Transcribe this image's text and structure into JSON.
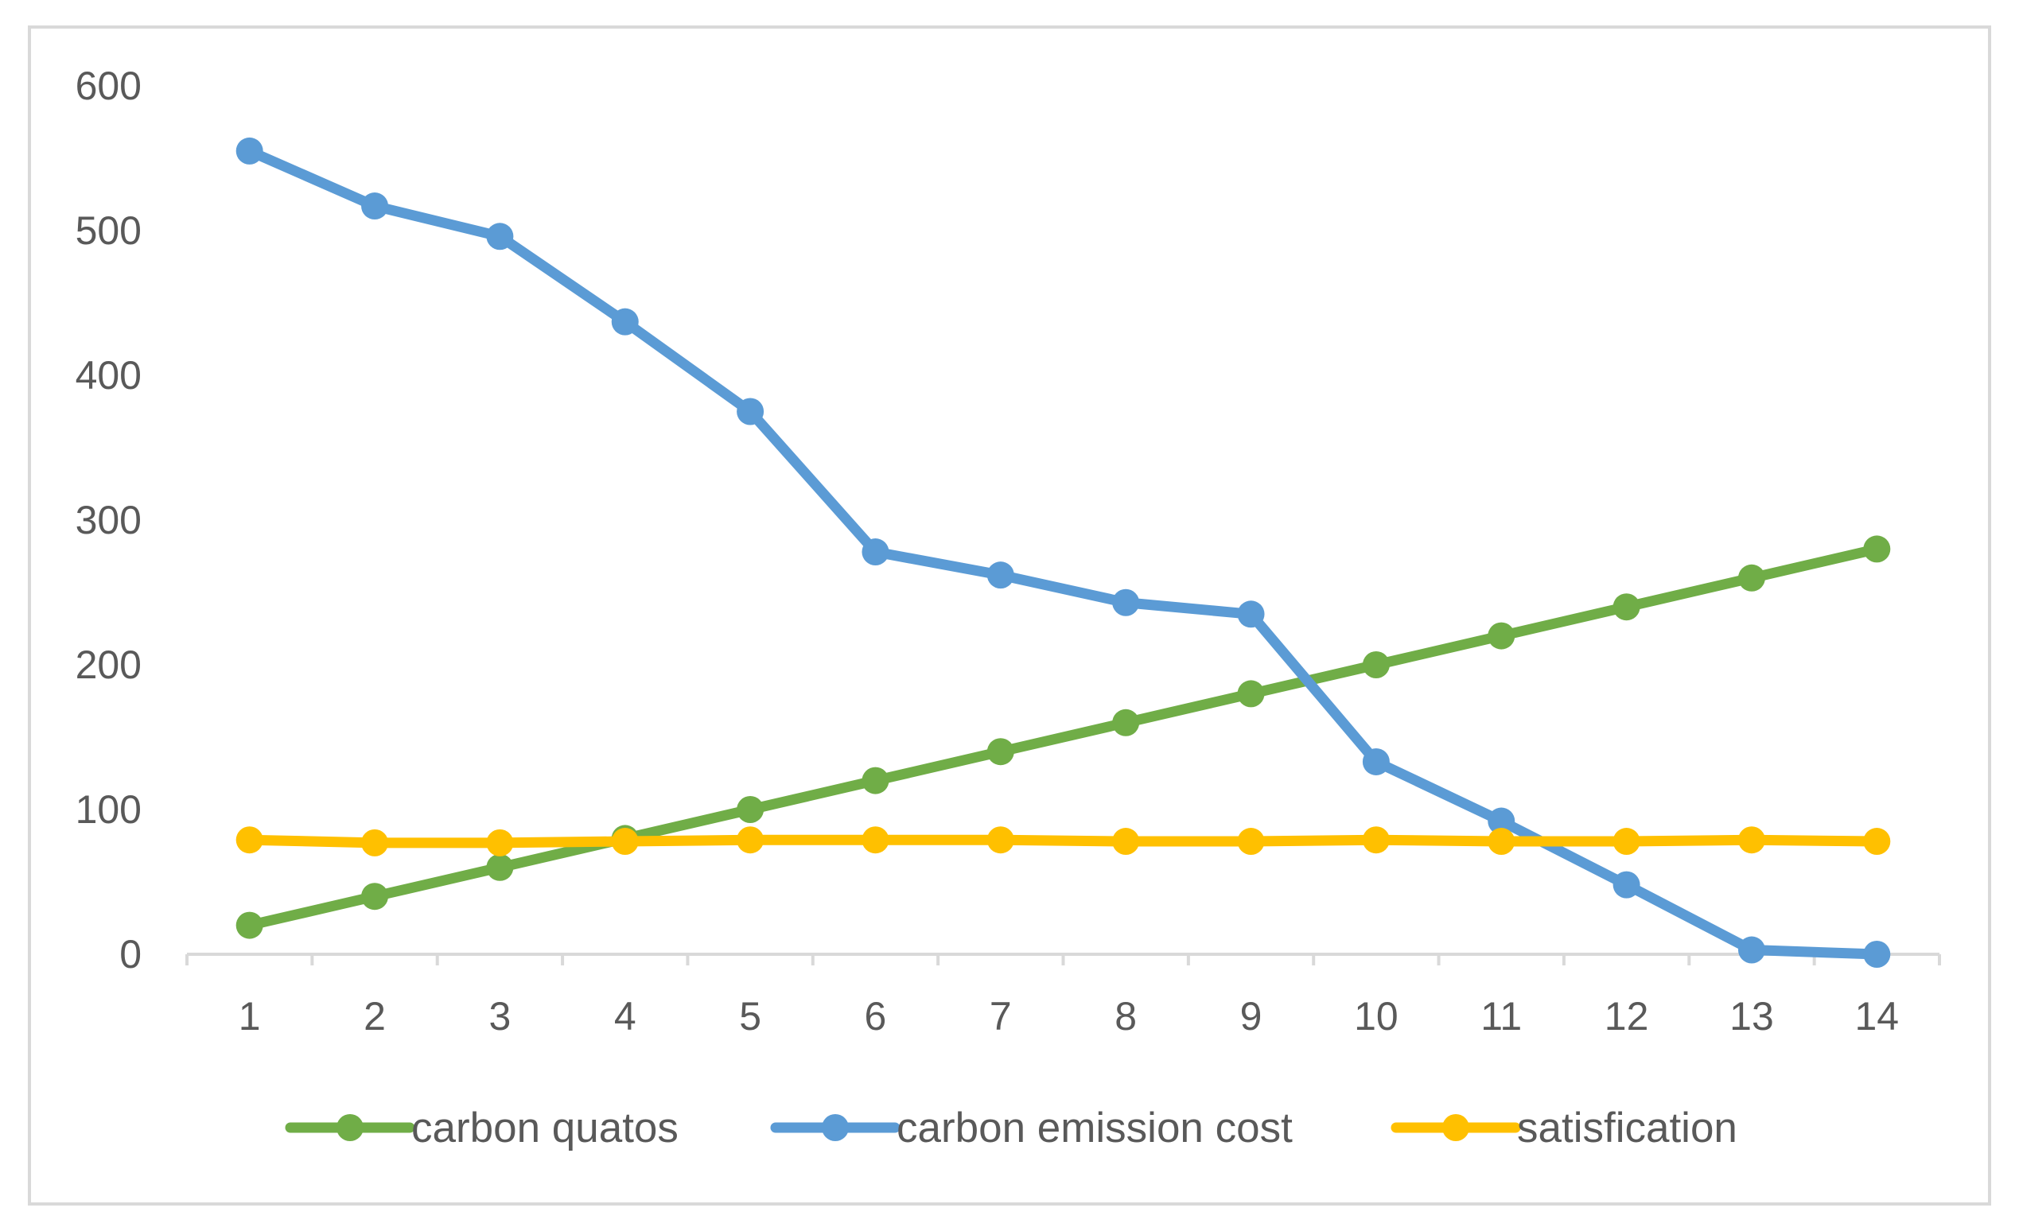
{
  "chart_data": {
    "type": "line",
    "title": "",
    "xlabel": "",
    "ylabel": "",
    "ylim": [
      0,
      600
    ],
    "yticks": [
      0,
      100,
      200,
      300,
      400,
      500,
      600
    ],
    "categories": [
      "1",
      "2",
      "3",
      "4",
      "5",
      "6",
      "7",
      "8",
      "9",
      "10",
      "11",
      "12",
      "13",
      "14"
    ],
    "grid": false,
    "legend_position": "bottom",
    "series": [
      {
        "name": "carbon quatos",
        "color": "#70ad47",
        "values": [
          20,
          40,
          60,
          80,
          100,
          120,
          140,
          160,
          180,
          200,
          220,
          240,
          260,
          280
        ]
      },
      {
        "name": "carbon emission cost",
        "color": "#5b9bd5",
        "values": [
          555,
          517,
          496,
          437,
          375,
          278,
          262,
          243,
          235,
          133,
          92,
          48,
          3,
          0
        ]
      },
      {
        "name": "satisfication",
        "color": "#ffc000",
        "values": [
          79,
          77,
          77,
          78,
          79,
          79,
          79,
          78,
          78,
          79,
          78,
          78,
          79,
          78
        ]
      }
    ]
  }
}
